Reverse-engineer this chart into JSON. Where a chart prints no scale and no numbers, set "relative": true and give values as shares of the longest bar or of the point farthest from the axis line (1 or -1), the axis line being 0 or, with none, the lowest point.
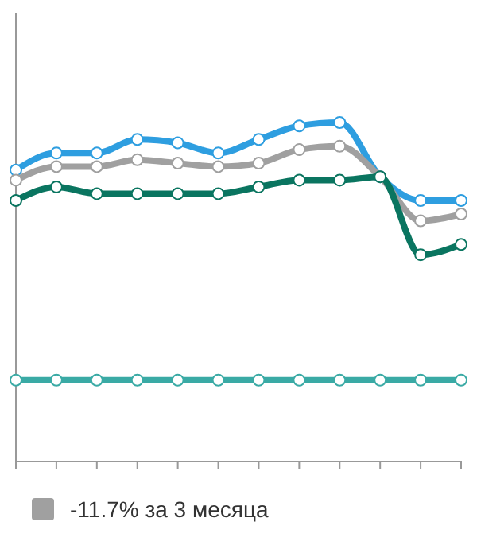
{
  "chart_data": {
    "type": "line",
    "relative": true,
    "categories": [
      null,
      null,
      null,
      null,
      null,
      null,
      null,
      null,
      null,
      null,
      null,
      null
    ],
    "marker": "circle",
    "legend": "bottom",
    "series": [
      {
        "color": "#2e9ee0",
        "values": [
          0.86,
          0.91,
          0.91,
          0.95,
          0.94,
          0.91,
          0.95,
          0.99,
          1,
          0.84,
          0.77,
          0.77
        ]
      },
      {
        "name": "-11.7% за 3 месяца",
        "color": "#a0a0a0",
        "values": [
          0.83,
          0.87,
          0.87,
          0.89,
          0.88,
          0.87,
          0.88,
          0.92,
          0.93,
          0.84,
          0.71,
          0.73
        ]
      },
      {
        "color": "#0a7560",
        "values": [
          0.77,
          0.81,
          0.79,
          0.79,
          0.79,
          0.79,
          0.81,
          0.83,
          0.83,
          0.84,
          0.61,
          0.64
        ]
      },
      {
        "color": "#3aaaa5",
        "values": [
          0.24,
          0.24,
          0.24,
          0.24,
          0.24,
          0.24,
          0.24,
          0.24,
          0.24,
          0.24,
          0.24,
          0.24
        ]
      }
    ]
  }
}
